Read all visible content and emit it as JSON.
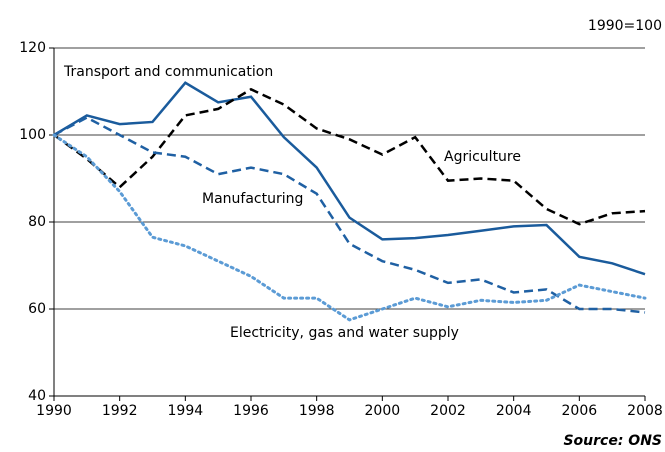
{
  "chart_data": {
    "type": "line",
    "unit_note": "1990=100",
    "source": "Source: ONS",
    "x": [
      1990,
      1991,
      1992,
      1993,
      1994,
      1995,
      1996,
      1997,
      1998,
      1999,
      2000,
      2001,
      2002,
      2003,
      2004,
      2005,
      2006,
      2007,
      2008
    ],
    "series": [
      {
        "name": "Transport and communication",
        "color": "#1a5b9c",
        "style": "solid",
        "values": [
          100,
          104.5,
          102.5,
          103,
          112,
          107.5,
          108.8,
          99.5,
          92.5,
          81,
          76,
          76.3,
          77,
          78,
          79,
          79.3,
          72,
          70.5,
          68
        ]
      },
      {
        "name": "Agriculture",
        "color": "#000000",
        "style": "dashed",
        "values": [
          100,
          94.5,
          88,
          95,
          104.5,
          106,
          110.5,
          107,
          101.5,
          99,
          95.5,
          99.5,
          89.5,
          90,
          89.5,
          83,
          79.5,
          82,
          82.5
        ]
      },
      {
        "name": "Manufacturing",
        "color": "#1f60a3",
        "style": "dashed",
        "values": [
          100,
          104,
          100,
          96,
          95,
          91,
          92.5,
          91,
          86.5,
          75,
          71,
          69,
          66,
          66.8,
          63.8,
          64.5,
          60,
          60,
          59.2
        ]
      },
      {
        "name": "Electricity, gas and water supply",
        "color": "#5b9bd5",
        "style": "dotted",
        "values": [
          100,
          95,
          87,
          76.5,
          74.5,
          71,
          67.5,
          62.5,
          62.5,
          57.5,
          60,
          62.5,
          60.5,
          62,
          61.5,
          62,
          65.5,
          64,
          62.5
        ]
      }
    ],
    "xlim": [
      1990,
      2008
    ],
    "xticks": [
      1990,
      1992,
      1994,
      1996,
      1998,
      2000,
      2002,
      2004,
      2006,
      2008
    ],
    "ylim": [
      40,
      120
    ],
    "yticks": [
      40,
      60,
      80,
      100,
      120
    ],
    "grid": true
  }
}
